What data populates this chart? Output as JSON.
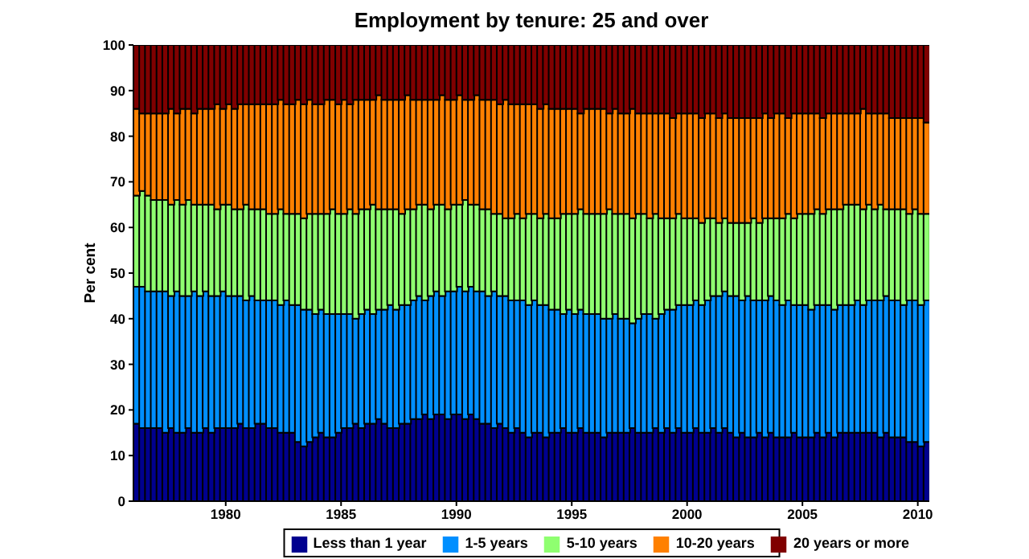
{
  "chart_data": {
    "type": "bar",
    "title": "Employment by tenure: 25 and over",
    "ylabel": "Per cent",
    "stacked": true,
    "legend": "bottom",
    "xlim": [
      1976,
      2010.5
    ],
    "xticks": [
      1980,
      1985,
      1990,
      1995,
      2000,
      2005,
      2010
    ],
    "ylim": [
      0,
      100
    ],
    "yticks": [
      0,
      10,
      20,
      30,
      40,
      50,
      60,
      70,
      80,
      90,
      100
    ],
    "x": [
      1976.125,
      1976.375,
      1976.625,
      1976.875,
      1977.125,
      1977.375,
      1977.625,
      1977.875,
      1978.125,
      1978.375,
      1978.625,
      1978.875,
      1979.125,
      1979.375,
      1979.625,
      1979.875,
      1980.125,
      1980.375,
      1980.625,
      1980.875,
      1981.125,
      1981.375,
      1981.625,
      1981.875,
      1982.125,
      1982.375,
      1982.625,
      1982.875,
      1983.125,
      1983.375,
      1983.625,
      1983.875,
      1984.125,
      1984.375,
      1984.625,
      1984.875,
      1985.125,
      1985.375,
      1985.625,
      1985.875,
      1986.125,
      1986.375,
      1986.625,
      1986.875,
      1987.125,
      1987.375,
      1987.625,
      1987.875,
      1988.125,
      1988.375,
      1988.625,
      1988.875,
      1989.125,
      1989.375,
      1989.625,
      1989.875,
      1990.125,
      1990.375,
      1990.625,
      1990.875,
      1991.125,
      1991.375,
      1991.625,
      1991.875,
      1992.125,
      1992.375,
      1992.625,
      1992.875,
      1993.125,
      1993.375,
      1993.625,
      1993.875,
      1994.125,
      1994.375,
      1994.625,
      1994.875,
      1995.125,
      1995.375,
      1995.625,
      1995.875,
      1996.125,
      1996.375,
      1996.625,
      1996.875,
      1997.125,
      1997.375,
      1997.625,
      1997.875,
      1998.125,
      1998.375,
      1998.625,
      1998.875,
      1999.125,
      1999.375,
      1999.625,
      1999.875,
      2000.125,
      2000.375,
      2000.625,
      2000.875,
      2001.125,
      2001.375,
      2001.625,
      2001.875,
      2002.125,
      2002.375,
      2002.625,
      2002.875,
      2003.125,
      2003.375,
      2003.625,
      2003.875,
      2004.125,
      2004.375,
      2004.625,
      2004.875,
      2005.125,
      2005.375,
      2005.625,
      2005.875,
      2006.125,
      2006.375,
      2006.625,
      2006.875,
      2007.125,
      2007.375,
      2007.625,
      2007.875,
      2008.125,
      2008.375,
      2008.625,
      2008.875,
      2009.125,
      2009.375,
      2009.625,
      2009.875,
      2010.125,
      2010.375
    ],
    "series": [
      {
        "name": "Less than 1 year",
        "color": "#00008f",
        "values": [
          17,
          16,
          16,
          16,
          16,
          15,
          16,
          15,
          15,
          16,
          15,
          15,
          16,
          15,
          16,
          16,
          16,
          16,
          17,
          16,
          16,
          17,
          17,
          16,
          16,
          15,
          15,
          15,
          13,
          12,
          13,
          14,
          15,
          14,
          14,
          15,
          16,
          16,
          17,
          16,
          17,
          17,
          18,
          17,
          16,
          16,
          17,
          17,
          18,
          18,
          19,
          18,
          19,
          19,
          18,
          19,
          19,
          18,
          19,
          18,
          17,
          17,
          16,
          17,
          16,
          15,
          16,
          15,
          14,
          15,
          15,
          14,
          15,
          15,
          16,
          15,
          15,
          16,
          15,
          15,
          15,
          14,
          15,
          15,
          15,
          15,
          16,
          15,
          15,
          15,
          16,
          15,
          16,
          15,
          16,
          15,
          15,
          16,
          15,
          15,
          16,
          15,
          16,
          15,
          14,
          15,
          14,
          14,
          15,
          14,
          15,
          14,
          14,
          14,
          15,
          14,
          14,
          14,
          15,
          14,
          15,
          14,
          15,
          15,
          15,
          15,
          15,
          15,
          15,
          14,
          15,
          14,
          14,
          14,
          13,
          13,
          12,
          13
        ]
      },
      {
        "name": "1-5 years",
        "color": "#008fff",
        "values": [
          30,
          31,
          30,
          30,
          30,
          31,
          29,
          31,
          30,
          29,
          31,
          30,
          30,
          30,
          29,
          30,
          29,
          29,
          28,
          28,
          29,
          27,
          27,
          28,
          28,
          28,
          29,
          28,
          30,
          30,
          29,
          27,
          27,
          27,
          27,
          26,
          25,
          25,
          23,
          25,
          25,
          24,
          24,
          25,
          27,
          26,
          26,
          26,
          26,
          27,
          25,
          27,
          27,
          26,
          28,
          27,
          28,
          28,
          28,
          28,
          29,
          28,
          30,
          28,
          29,
          29,
          28,
          29,
          29,
          29,
          28,
          29,
          27,
          27,
          25,
          27,
          26,
          26,
          26,
          26,
          26,
          26,
          25,
          26,
          25,
          25,
          23,
          25,
          26,
          26,
          24,
          26,
          26,
          27,
          27,
          28,
          28,
          28,
          28,
          29,
          29,
          30,
          30,
          30,
          31,
          29,
          31,
          30,
          29,
          30,
          30,
          30,
          29,
          30,
          28,
          29,
          29,
          28,
          28,
          29,
          28,
          28,
          28,
          28,
          28,
          29,
          28,
          29,
          29,
          30,
          30,
          30,
          30,
          29,
          31,
          31,
          31,
          31
        ]
      },
      {
        "name": "5-10 years",
        "color": "#8fff70",
        "values": [
          20,
          21,
          21,
          20,
          20,
          20,
          20,
          20,
          20,
          21,
          19,
          20,
          19,
          20,
          19,
          19,
          20,
          19,
          19,
          21,
          19,
          20,
          20,
          19,
          19,
          21,
          19,
          20,
          20,
          20,
          21,
          22,
          21,
          22,
          23,
          22,
          22,
          23,
          23,
          23,
          22,
          24,
          22,
          22,
          21,
          22,
          20,
          21,
          20,
          20,
          21,
          19,
          19,
          20,
          18,
          19,
          18,
          20,
          18,
          19,
          18,
          19,
          17,
          18,
          17,
          18,
          19,
          18,
          20,
          19,
          19,
          20,
          20,
          20,
          22,
          21,
          22,
          22,
          22,
          22,
          22,
          23,
          24,
          22,
          23,
          23,
          23,
          23,
          22,
          21,
          23,
          21,
          20,
          20,
          20,
          19,
          19,
          18,
          18,
          18,
          17,
          16,
          16,
          16,
          16,
          17,
          16,
          18,
          17,
          18,
          17,
          18,
          19,
          19,
          19,
          20,
          20,
          21,
          21,
          20,
          21,
          22,
          21,
          22,
          22,
          21,
          21,
          21,
          20,
          21,
          19,
          20,
          20,
          21,
          19,
          20,
          20,
          19
        ]
      },
      {
        "name": "10-20 years",
        "color": "#ff8000",
        "values": [
          19,
          17,
          18,
          19,
          19,
          19,
          21,
          19,
          21,
          20,
          20,
          21,
          21,
          21,
          23,
          21,
          22,
          22,
          23,
          22,
          23,
          23,
          23,
          24,
          24,
          24,
          24,
          24,
          25,
          25,
          25,
          24,
          24,
          25,
          24,
          24,
          25,
          23,
          25,
          24,
          24,
          23,
          25,
          24,
          24,
          24,
          25,
          25,
          24,
          23,
          23,
          24,
          23,
          24,
          24,
          23,
          24,
          22,
          23,
          24,
          24,
          24,
          25,
          24,
          26,
          25,
          24,
          25,
          24,
          24,
          24,
          24,
          24,
          24,
          23,
          23,
          23,
          21,
          23,
          23,
          23,
          23,
          21,
          23,
          22,
          22,
          24,
          22,
          22,
          23,
          22,
          23,
          23,
          22,
          22,
          23,
          23,
          23,
          23,
          23,
          23,
          23,
          23,
          23,
          23,
          23,
          23,
          22,
          23,
          23,
          22,
          23,
          23,
          21,
          23,
          22,
          22,
          22,
          21,
          21,
          21,
          21,
          21,
          20,
          20,
          20,
          22,
          20,
          21,
          20,
          21,
          20,
          20,
          20,
          21,
          20,
          21,
          20
        ]
      },
      {
        "name": "20 years or more",
        "color": "#800000",
        "values": [
          14,
          15,
          15,
          15,
          15,
          15,
          14,
          15,
          14,
          14,
          15,
          14,
          14,
          14,
          13,
          14,
          13,
          14,
          13,
          13,
          13,
          13,
          13,
          13,
          13,
          12,
          13,
          13,
          12,
          13,
          12,
          13,
          13,
          12,
          12,
          13,
          12,
          13,
          12,
          12,
          12,
          12,
          11,
          12,
          12,
          12,
          12,
          11,
          12,
          12,
          12,
          12,
          12,
          11,
          12,
          12,
          11,
          12,
          12,
          11,
          12,
          12,
          12,
          13,
          12,
          13,
          13,
          13,
          13,
          13,
          14,
          13,
          14,
          14,
          14,
          14,
          14,
          15,
          14,
          14,
          14,
          14,
          15,
          14,
          15,
          15,
          14,
          15,
          15,
          15,
          15,
          15,
          15,
          16,
          15,
          15,
          15,
          15,
          16,
          15,
          15,
          16,
          15,
          16,
          16,
          16,
          16,
          16,
          16,
          15,
          16,
          15,
          15,
          16,
          15,
          15,
          15,
          15,
          15,
          16,
          15,
          15,
          15,
          15,
          15,
          15,
          14,
          15,
          15,
          15,
          15,
          16,
          16,
          16,
          16,
          16,
          16,
          17
        ]
      }
    ]
  }
}
